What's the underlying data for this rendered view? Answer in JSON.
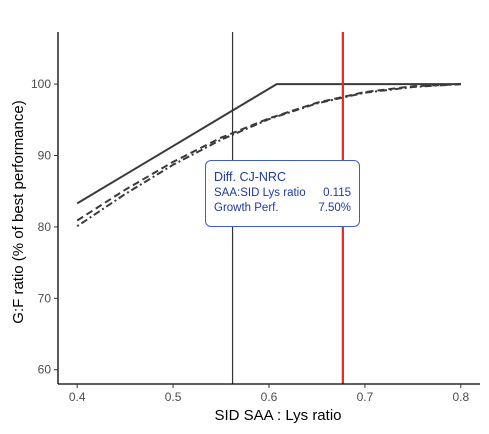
{
  "chart_data": {
    "type": "line",
    "title": "",
    "xlabel": "SID SAA : Lys ratio",
    "ylabel": "G:F ratio (% of best performance)",
    "xlim": [
      0.38,
      0.82
    ],
    "ylim": [
      58.0,
      107.3
    ],
    "xticks": [
      0.4,
      0.5,
      0.6,
      0.7,
      0.8
    ],
    "xtick_labels": [
      "0.4",
      "0.5",
      "0.6",
      "0.7",
      "0.8"
    ],
    "yticks": [
      60,
      70,
      80,
      90,
      100
    ],
    "ytick_labels": [
      "60",
      "70",
      "80",
      "90",
      "100"
    ],
    "grid": false,
    "series": [
      {
        "style": "solid",
        "color": "#3a3a3a",
        "x": [
          0.4,
          0.608,
          0.8
        ],
        "y": [
          83.3,
          100.0,
          100.0
        ]
      },
      {
        "style": "dashed",
        "color": "#3a3a3a",
        "x": [
          0.4,
          0.45,
          0.5,
          0.55,
          0.6,
          0.65,
          0.7,
          0.75,
          0.8
        ],
        "y": [
          80.9,
          85.2,
          89.1,
          92.5,
          95.2,
          97.4,
          98.9,
          99.7,
          100.0
        ]
      },
      {
        "style": "dotdash",
        "color": "#3a3a3a",
        "x": [
          0.4,
          0.45,
          0.5,
          0.55,
          0.6,
          0.65,
          0.7,
          0.75,
          0.8
        ],
        "y": [
          80.1,
          84.6,
          88.7,
          92.2,
          95.1,
          97.3,
          98.8,
          99.6,
          100.0
        ]
      }
    ],
    "vlines": [
      {
        "x": 0.562,
        "color": "#333333",
        "width": 1.2
      },
      {
        "x": 0.677,
        "color": "#e3262a",
        "width": 2.2
      }
    ],
    "annotation": {
      "title": "Diff. CJ-NRC",
      "rows": [
        {
          "label": "SAA:SID Lys ratio",
          "value": "0.115"
        },
        {
          "label": "Growth Perf.",
          "value": "7.50%"
        }
      ]
    }
  }
}
